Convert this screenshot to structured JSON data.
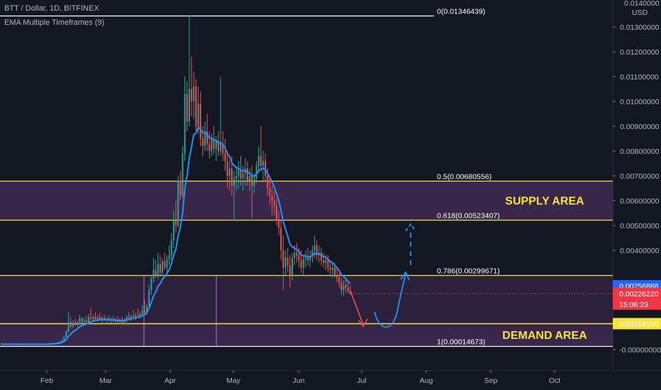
{
  "header": {
    "symbol": "BTT / Dollar, 1D, BITFINEX",
    "indicator": "EMA Multiple Timeframes (9)"
  },
  "currency": "USD",
  "colors": {
    "background": "#131722",
    "up": "#26a69a",
    "down": "#ef5350",
    "ema": "#2a8ff7",
    "fib": "#f5e33b",
    "zone": "#6b3d86",
    "current_price": "#2962ff",
    "last_price": "#f23645"
  },
  "chart_data": {
    "type": "candlestick",
    "symbol": "BTT / Dollar",
    "timeframe": "1D",
    "exchange": "BITFINEX",
    "indicator": "EMA Multiple Timeframes (9)",
    "x_ticks": [
      "Feb",
      "Mar",
      "Apr",
      "May",
      "Jun",
      "Jul",
      "Aug",
      "Sep",
      "Oct"
    ],
    "y_ticks": [
      "0.01300000",
      "0.01200000",
      "0.01100000",
      "0.01000000",
      "0.00900000",
      "0.00800000",
      "0.00700000",
      "0.00600000",
      "0.00500000",
      "0.00400000",
      "-0.00000000"
    ],
    "y_top_partial": "0.0140000",
    "ylim": [
      -0.0002,
      0.0144
    ],
    "fib_levels": [
      {
        "label": "0(0.01346439)",
        "value": 0.01346439
      },
      {
        "label": "0.5(0.00680556)",
        "value": 0.00680556
      },
      {
        "label": "0.618(0.00523407)",
        "value": 0.00523407
      },
      {
        "label": "0.786(0.00299671)",
        "value": 0.00299671
      },
      {
        "label": "1(0.00014673)",
        "value": 0.00014673
      }
    ],
    "zones": [
      {
        "label": "SUPPLY AREA",
        "top": 0.00680556,
        "bottom": 0.00523407
      },
      {
        "label": "DEMAND AREA",
        "top": 0.001045,
        "bottom": 0.00014673
      }
    ],
    "price_badges": [
      {
        "label": "0.00256888",
        "value": 0.00256888,
        "kind": "current"
      },
      {
        "label": "0.00226220",
        "value": 0.0022622,
        "kind": "last",
        "countdown": "15:06:23"
      },
      {
        "label": "0.00104500",
        "value": 0.001045,
        "kind": "level"
      }
    ],
    "candles": [
      {
        "o": 0.00023,
        "h": 0.00026,
        "l": 0.00019,
        "c": 0.00022
      },
      {
        "o": 0.00022,
        "h": 0.00025,
        "l": 0.00019,
        "c": 0.00021
      },
      {
        "o": 0.00021,
        "h": 0.00024,
        "l": 0.00018,
        "c": 0.00022
      },
      {
        "o": 0.00022,
        "h": 0.00025,
        "l": 0.00019,
        "c": 0.00021
      },
      {
        "o": 0.00021,
        "h": 0.00024,
        "l": 0.00018,
        "c": 0.00022
      },
      {
        "o": 0.00022,
        "h": 0.00025,
        "l": 0.00019,
        "c": 0.00021
      },
      {
        "o": 0.00021,
        "h": 0.00024,
        "l": 0.00018,
        "c": 0.00022
      },
      {
        "o": 0.00022,
        "h": 0.00025,
        "l": 0.00019,
        "c": 0.00021
      },
      {
        "o": 0.00021,
        "h": 0.00024,
        "l": 0.00018,
        "c": 0.00022
      },
      {
        "o": 0.00022,
        "h": 0.00025,
        "l": 0.00019,
        "c": 0.00021
      },
      {
        "o": 0.00021,
        "h": 0.00024,
        "l": 0.00018,
        "c": 0.00022
      },
      {
        "o": 0.00022,
        "h": 0.00025,
        "l": 0.00019,
        "c": 0.00021
      },
      {
        "o": 0.00021,
        "h": 0.00024,
        "l": 0.00018,
        "c": 0.00022
      },
      {
        "o": 0.00022,
        "h": 0.00025,
        "l": 0.00019,
        "c": 0.00021
      },
      {
        "o": 0.00021,
        "h": 0.00024,
        "l": 0.00018,
        "c": 0.00022
      },
      {
        "o": 0.00022,
        "h": 0.00025,
        "l": 0.00019,
        "c": 0.00021
      },
      {
        "o": 0.00021,
        "h": 0.00024,
        "l": 0.00018,
        "c": 0.00022
      },
      {
        "o": 0.00022,
        "h": 0.00025,
        "l": 0.00019,
        "c": 0.00021
      },
      {
        "o": 0.00021,
        "h": 0.00024,
        "l": 0.00018,
        "c": 0.00022
      },
      {
        "o": 0.00022,
        "h": 0.00025,
        "l": 0.00019,
        "c": 0.00021
      },
      {
        "o": 0.00021,
        "h": 0.00024,
        "l": 0.00018,
        "c": 0.00022
      },
      {
        "o": 0.00022,
        "h": 0.00026,
        "l": 0.00019,
        "c": 0.00023
      },
      {
        "o": 0.00023,
        "h": 0.00027,
        "l": 0.0002,
        "c": 0.00024
      },
      {
        "o": 0.00024,
        "h": 0.00028,
        "l": 0.00021,
        "c": 0.00025
      },
      {
        "o": 0.00025,
        "h": 0.00029,
        "l": 0.00022,
        "c": 0.00026
      },
      {
        "o": 0.00026,
        "h": 0.00031,
        "l": 0.00023,
        "c": 0.00028
      },
      {
        "o": 0.00028,
        "h": 0.00034,
        "l": 0.00025,
        "c": 0.00031
      },
      {
        "o": 0.00031,
        "h": 0.0004,
        "l": 0.00028,
        "c": 0.00036
      },
      {
        "o": 0.00036,
        "h": 0.00055,
        "l": 0.00034,
        "c": 0.00052
      },
      {
        "o": 0.00052,
        "h": 0.0008,
        "l": 0.00048,
        "c": 0.00072
      },
      {
        "o": 0.00072,
        "h": 0.0015,
        "l": 0.00068,
        "c": 0.0011
      },
      {
        "o": 0.0011,
        "h": 0.0013,
        "l": 0.00085,
        "c": 0.00095
      },
      {
        "o": 0.00095,
        "h": 0.00118,
        "l": 0.00088,
        "c": 0.00108
      },
      {
        "o": 0.00108,
        "h": 0.00125,
        "l": 0.00096,
        "c": 0.001
      },
      {
        "o": 0.001,
        "h": 0.00115,
        "l": 0.00092,
        "c": 0.0011
      },
      {
        "o": 0.0011,
        "h": 0.0014,
        "l": 0.00102,
        "c": 0.00125
      },
      {
        "o": 0.00125,
        "h": 0.00132,
        "l": 0.00105,
        "c": 0.00112
      },
      {
        "o": 0.00112,
        "h": 0.00128,
        "l": 0.001,
        "c": 0.00118
      },
      {
        "o": 0.00118,
        "h": 0.00135,
        "l": 0.00108,
        "c": 0.0011
      },
      {
        "o": 0.0011,
        "h": 0.00145,
        "l": 0.00102,
        "c": 0.0013
      },
      {
        "o": 0.0013,
        "h": 0.0017,
        "l": 0.00118,
        "c": 0.00125
      },
      {
        "o": 0.00125,
        "h": 0.0014,
        "l": 0.0011,
        "c": 0.00132
      },
      {
        "o": 0.00132,
        "h": 0.0015,
        "l": 0.00118,
        "c": 0.00122
      },
      {
        "o": 0.00122,
        "h": 0.0014,
        "l": 0.00112,
        "c": 0.0013
      },
      {
        "o": 0.0013,
        "h": 0.00148,
        "l": 0.00118,
        "c": 0.0012
      },
      {
        "o": 0.0012,
        "h": 0.00135,
        "l": 0.00108,
        "c": 0.00128
      },
      {
        "o": 0.00128,
        "h": 0.00142,
        "l": 0.00115,
        "c": 0.00118
      },
      {
        "o": 0.00118,
        "h": 0.00132,
        "l": 0.00106,
        "c": 0.00125
      },
      {
        "o": 0.00125,
        "h": 0.00138,
        "l": 0.00112,
        "c": 0.00116
      },
      {
        "o": 0.00116,
        "h": 0.0013,
        "l": 0.00106,
        "c": 0.00122
      },
      {
        "o": 0.00122,
        "h": 0.00136,
        "l": 0.0011,
        "c": 0.00114
      },
      {
        "o": 0.00114,
        "h": 0.00128,
        "l": 0.00104,
        "c": 0.0012
      },
      {
        "o": 0.0012,
        "h": 0.00134,
        "l": 0.00108,
        "c": 0.00112
      },
      {
        "o": 0.00112,
        "h": 0.00126,
        "l": 0.00102,
        "c": 0.00118
      },
      {
        "o": 0.00118,
        "h": 0.00132,
        "l": 0.00106,
        "c": 0.0011
      },
      {
        "o": 0.0011,
        "h": 0.00126,
        "l": 0.00102,
        "c": 0.0012
      },
      {
        "o": 0.0012,
        "h": 0.0014,
        "l": 0.0011,
        "c": 0.00132
      },
      {
        "o": 0.00132,
        "h": 0.0015,
        "l": 0.00118,
        "c": 0.00124
      },
      {
        "o": 0.00124,
        "h": 0.0014,
        "l": 0.00114,
        "c": 0.00136
      },
      {
        "o": 0.00136,
        "h": 0.0016,
        "l": 0.00124,
        "c": 0.0013
      },
      {
        "o": 0.0013,
        "h": 0.00148,
        "l": 0.00118,
        "c": 0.0014
      },
      {
        "o": 0.0014,
        "h": 0.00165,
        "l": 0.00128,
        "c": 0.00135
      },
      {
        "o": 0.00135,
        "h": 0.00155,
        "l": 0.00124,
        "c": 0.00145
      },
      {
        "o": 0.00145,
        "h": 0.0018,
        "l": 0.00132,
        "c": 0.0016
      },
      {
        "o": 0.0016,
        "h": 0.002,
        "l": 0.00145,
        "c": 0.0015
      },
      {
        "o": 0.0015,
        "h": 0.00185,
        "l": 0.0014,
        "c": 0.00175
      },
      {
        "o": 0.00175,
        "h": 0.0026,
        "l": 0.00165,
        "c": 0.0024
      },
      {
        "o": 0.0024,
        "h": 0.003,
        "l": 0.0022,
        "c": 0.00285
      },
      {
        "o": 0.00285,
        "h": 0.0037,
        "l": 0.0027,
        "c": 0.0032
      },
      {
        "o": 0.0032,
        "h": 0.0036,
        "l": 0.0029,
        "c": 0.003
      },
      {
        "o": 0.003,
        "h": 0.0039,
        "l": 0.00285,
        "c": 0.00345
      },
      {
        "o": 0.00345,
        "h": 0.0038,
        "l": 0.003,
        "c": 0.0031
      },
      {
        "o": 0.0031,
        "h": 0.0037,
        "l": 0.00295,
        "c": 0.00355
      },
      {
        "o": 0.00355,
        "h": 0.0039,
        "l": 0.0032,
        "c": 0.0033
      },
      {
        "o": 0.0033,
        "h": 0.0038,
        "l": 0.0031,
        "c": 0.00365
      },
      {
        "o": 0.00365,
        "h": 0.0042,
        "l": 0.0034,
        "c": 0.0038
      },
      {
        "o": 0.0038,
        "h": 0.0047,
        "l": 0.0036,
        "c": 0.0044
      },
      {
        "o": 0.0044,
        "h": 0.0056,
        "l": 0.0041,
        "c": 0.0052
      },
      {
        "o": 0.0052,
        "h": 0.006,
        "l": 0.0047,
        "c": 0.005
      },
      {
        "o": 0.005,
        "h": 0.007,
        "l": 0.0049,
        "c": 0.0068
      },
      {
        "o": 0.0068,
        "h": 0.0072,
        "l": 0.006,
        "c": 0.0062
      },
      {
        "o": 0.0062,
        "h": 0.0082,
        "l": 0.0061,
        "c": 0.0079
      },
      {
        "o": 0.0079,
        "h": 0.011,
        "l": 0.0076,
        "c": 0.0103
      },
      {
        "o": 0.0103,
        "h": 0.0108,
        "l": 0.0088,
        "c": 0.0092
      },
      {
        "o": 0.0092,
        "h": 0.01346,
        "l": 0.009,
        "c": 0.0105
      },
      {
        "o": 0.0105,
        "h": 0.0118,
        "l": 0.0094,
        "c": 0.01
      },
      {
        "o": 0.01,
        "h": 0.0112,
        "l": 0.0093,
        "c": 0.0106
      },
      {
        "o": 0.0106,
        "h": 0.0109,
        "l": 0.0088,
        "c": 0.009
      },
      {
        "o": 0.009,
        "h": 0.0106,
        "l": 0.0087,
        "c": 0.0099
      },
      {
        "o": 0.0099,
        "h": 0.0104,
        "l": 0.0082,
        "c": 0.0085
      },
      {
        "o": 0.0085,
        "h": 0.009,
        "l": 0.0078,
        "c": 0.0082
      },
      {
        "o": 0.0082,
        "h": 0.0092,
        "l": 0.008,
        "c": 0.0088
      },
      {
        "o": 0.0088,
        "h": 0.0095,
        "l": 0.008,
        "c": 0.0083
      },
      {
        "o": 0.0083,
        "h": 0.0088,
        "l": 0.0077,
        "c": 0.008
      },
      {
        "o": 0.008,
        "h": 0.0087,
        "l": 0.0078,
        "c": 0.0085
      },
      {
        "o": 0.0085,
        "h": 0.009,
        "l": 0.0079,
        "c": 0.0081
      },
      {
        "o": 0.0081,
        "h": 0.0086,
        "l": 0.0076,
        "c": 0.0084
      },
      {
        "o": 0.0084,
        "h": 0.0088,
        "l": 0.0078,
        "c": 0.008
      },
      {
        "o": 0.008,
        "h": 0.011,
        "l": 0.0078,
        "c": 0.0083
      },
      {
        "o": 0.0083,
        "h": 0.0088,
        "l": 0.0076,
        "c": 0.0079
      },
      {
        "o": 0.0079,
        "h": 0.0085,
        "l": 0.0072,
        "c": 0.0076
      },
      {
        "o": 0.0076,
        "h": 0.008,
        "l": 0.0065,
        "c": 0.007
      },
      {
        "o": 0.007,
        "h": 0.0076,
        "l": 0.0064,
        "c": 0.0073
      },
      {
        "o": 0.0073,
        "h": 0.0078,
        "l": 0.0062,
        "c": 0.0066
      },
      {
        "o": 0.0066,
        "h": 0.0072,
        "l": 0.0052,
        "c": 0.0069
      },
      {
        "o": 0.0069,
        "h": 0.0074,
        "l": 0.0064,
        "c": 0.007
      },
      {
        "o": 0.007,
        "h": 0.0076,
        "l": 0.0065,
        "c": 0.0072
      },
      {
        "o": 0.0072,
        "h": 0.0078,
        "l": 0.0066,
        "c": 0.0069
      },
      {
        "o": 0.0069,
        "h": 0.0074,
        "l": 0.0064,
        "c": 0.0071
      },
      {
        "o": 0.0071,
        "h": 0.0077,
        "l": 0.0066,
        "c": 0.0073
      },
      {
        "o": 0.0073,
        "h": 0.0076,
        "l": 0.0066,
        "c": 0.0068
      },
      {
        "o": 0.0068,
        "h": 0.0073,
        "l": 0.0064,
        "c": 0.007
      },
      {
        "o": 0.007,
        "h": 0.0074,
        "l": 0.0053,
        "c": 0.0066
      },
      {
        "o": 0.0066,
        "h": 0.0071,
        "l": 0.0063,
        "c": 0.0069
      },
      {
        "o": 0.0069,
        "h": 0.0076,
        "l": 0.0067,
        "c": 0.0074
      },
      {
        "o": 0.0074,
        "h": 0.0082,
        "l": 0.0071,
        "c": 0.0078
      },
      {
        "o": 0.0078,
        "h": 0.009,
        "l": 0.0072,
        "c": 0.0074
      },
      {
        "o": 0.0074,
        "h": 0.008,
        "l": 0.0068,
        "c": 0.0076
      },
      {
        "o": 0.0076,
        "h": 0.0079,
        "l": 0.0068,
        "c": 0.007
      },
      {
        "o": 0.007,
        "h": 0.0073,
        "l": 0.0062,
        "c": 0.0065
      },
      {
        "o": 0.0065,
        "h": 0.0069,
        "l": 0.0058,
        "c": 0.0062
      },
      {
        "o": 0.0062,
        "h": 0.0066,
        "l": 0.0054,
        "c": 0.006
      },
      {
        "o": 0.006,
        "h": 0.0064,
        "l": 0.0054,
        "c": 0.0058
      },
      {
        "o": 0.0058,
        "h": 0.0061,
        "l": 0.005,
        "c": 0.0052
      },
      {
        "o": 0.0052,
        "h": 0.0056,
        "l": 0.0046,
        "c": 0.0049
      },
      {
        "o": 0.0049,
        "h": 0.0052,
        "l": 0.0036,
        "c": 0.004
      },
      {
        "o": 0.004,
        "h": 0.0046,
        "l": 0.0024,
        "c": 0.0033
      },
      {
        "o": 0.0033,
        "h": 0.004,
        "l": 0.003,
        "c": 0.0037
      },
      {
        "o": 0.0037,
        "h": 0.0041,
        "l": 0.0031,
        "c": 0.0034
      },
      {
        "o": 0.0034,
        "h": 0.0038,
        "l": 0.0025,
        "c": 0.003
      },
      {
        "o": 0.003,
        "h": 0.0039,
        "l": 0.0028,
        "c": 0.0037
      },
      {
        "o": 0.0037,
        "h": 0.0042,
        "l": 0.0034,
        "c": 0.0039
      },
      {
        "o": 0.0039,
        "h": 0.0043,
        "l": 0.0035,
        "c": 0.0038
      },
      {
        "o": 0.0038,
        "h": 0.0041,
        "l": 0.0033,
        "c": 0.0036
      },
      {
        "o": 0.0036,
        "h": 0.004,
        "l": 0.0031,
        "c": 0.0033
      },
      {
        "o": 0.0033,
        "h": 0.0038,
        "l": 0.003,
        "c": 0.00365
      },
      {
        "o": 0.00365,
        "h": 0.004,
        "l": 0.0033,
        "c": 0.0037
      },
      {
        "o": 0.0037,
        "h": 0.0041,
        "l": 0.0034,
        "c": 0.0036
      },
      {
        "o": 0.0036,
        "h": 0.004,
        "l": 0.0033,
        "c": 0.00375
      },
      {
        "o": 0.00375,
        "h": 0.0042,
        "l": 0.0035,
        "c": 0.004
      },
      {
        "o": 0.004,
        "h": 0.0046,
        "l": 0.0037,
        "c": 0.0042
      },
      {
        "o": 0.0042,
        "h": 0.0044,
        "l": 0.0036,
        "c": 0.0038
      },
      {
        "o": 0.0038,
        "h": 0.0042,
        "l": 0.0035,
        "c": 0.0039
      },
      {
        "o": 0.0039,
        "h": 0.0041,
        "l": 0.0034,
        "c": 0.0036
      },
      {
        "o": 0.0036,
        "h": 0.0039,
        "l": 0.0033,
        "c": 0.0035
      },
      {
        "o": 0.0035,
        "h": 0.0038,
        "l": 0.0032,
        "c": 0.0036
      },
      {
        "o": 0.0036,
        "h": 0.0038,
        "l": 0.0031,
        "c": 0.0033
      },
      {
        "o": 0.0033,
        "h": 0.0036,
        "l": 0.003,
        "c": 0.0032
      },
      {
        "o": 0.0032,
        "h": 0.0035,
        "l": 0.0029,
        "c": 0.0033
      },
      {
        "o": 0.0033,
        "h": 0.0035,
        "l": 0.0029,
        "c": 0.003
      },
      {
        "o": 0.003,
        "h": 0.0033,
        "l": 0.0027,
        "c": 0.0029
      },
      {
        "o": 0.0029,
        "h": 0.0031,
        "l": 0.0025,
        "c": 0.0027
      },
      {
        "o": 0.0027,
        "h": 0.0029,
        "l": 0.0022,
        "c": 0.0024
      },
      {
        "o": 0.0024,
        "h": 0.0028,
        "l": 0.00215,
        "c": 0.0026
      },
      {
        "o": 0.0026,
        "h": 0.0029,
        "l": 0.0023,
        "c": 0.0025
      },
      {
        "o": 0.0025,
        "h": 0.0027,
        "l": 0.00225,
        "c": 0.00235
      },
      {
        "o": 0.00235,
        "h": 0.0026,
        "l": 0.0022,
        "c": 0.00226
      }
    ]
  },
  "drawings": {
    "vertical_lines": [
      "2021-03-22",
      "2021-04-30"
    ],
    "projection": "bearish drop to demand area then bullish bounce toward supply area"
  }
}
